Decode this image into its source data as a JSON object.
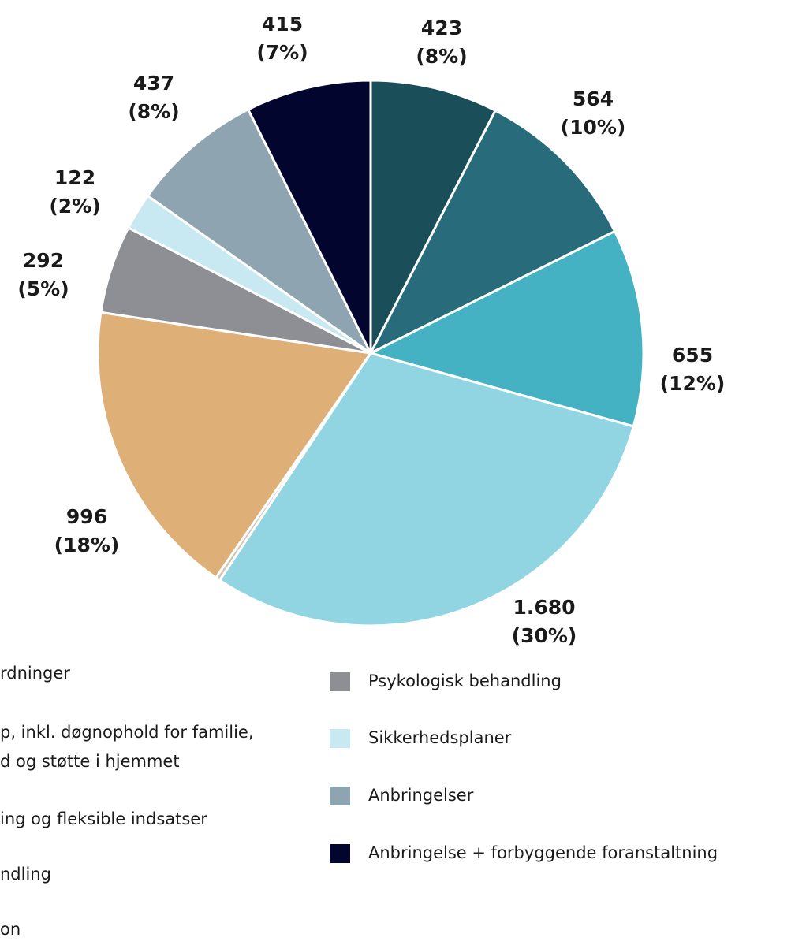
{
  "chart_data": {
    "type": "pie",
    "categories": [
      "rdninger",
      "p, inkl. døgnophold for familie,\nd og støtte i hjemmet",
      "ing og fleksible indsatser",
      "ndling",
      null,
      "on",
      "Psykologisk behandling",
      "Sikkerhedsplaner",
      "Anbringelser",
      "Anbringelse + forbyggende foranstaltning"
    ],
    "values": [
      423,
      564,
      655,
      1680,
      15,
      996,
      292,
      122,
      437,
      415
    ],
    "value_labels": [
      "423",
      "564",
      "655",
      "1.680",
      null,
      "996",
      "292",
      "122",
      "437",
      "415"
    ],
    "percentages": [
      8,
      10,
      12,
      30,
      null,
      18,
      5,
      2,
      8,
      7
    ],
    "percentage_labels": [
      "(8%)",
      "(10%)",
      "(12%)",
      "(30%)",
      null,
      "(18%)",
      "(5%)",
      "(2%)",
      "(8%)",
      "(7%)"
    ],
    "colors": [
      "#1a4f5a",
      "#286b7a",
      "#45b2c4",
      "#92d5e2",
      "#cfc6b4",
      "#deb078",
      "#8e8f94",
      "#c8e9f2",
      "#8ea4b0",
      "#02052e"
    ]
  }
}
